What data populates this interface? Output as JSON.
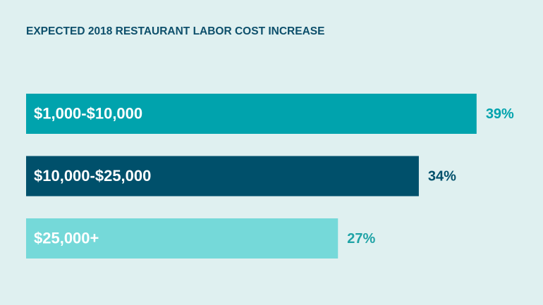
{
  "chart_data": {
    "type": "barh",
    "title": "EXPECTED 2018 RESTAURANT LABOR COST INCREASE",
    "categories": [
      "$1,000-$10,000",
      "$10,000-$25,000",
      "$25,000+"
    ],
    "values": [
      39,
      34,
      27
    ],
    "value_labels": [
      "39%",
      "34%",
      "27%"
    ],
    "colors": [
      "#00a3ad",
      "#00506b",
      "#75d9d9"
    ],
    "value_label_colors": [
      "#00a3ad",
      "#00506b",
      "#1fa3a6"
    ]
  }
}
